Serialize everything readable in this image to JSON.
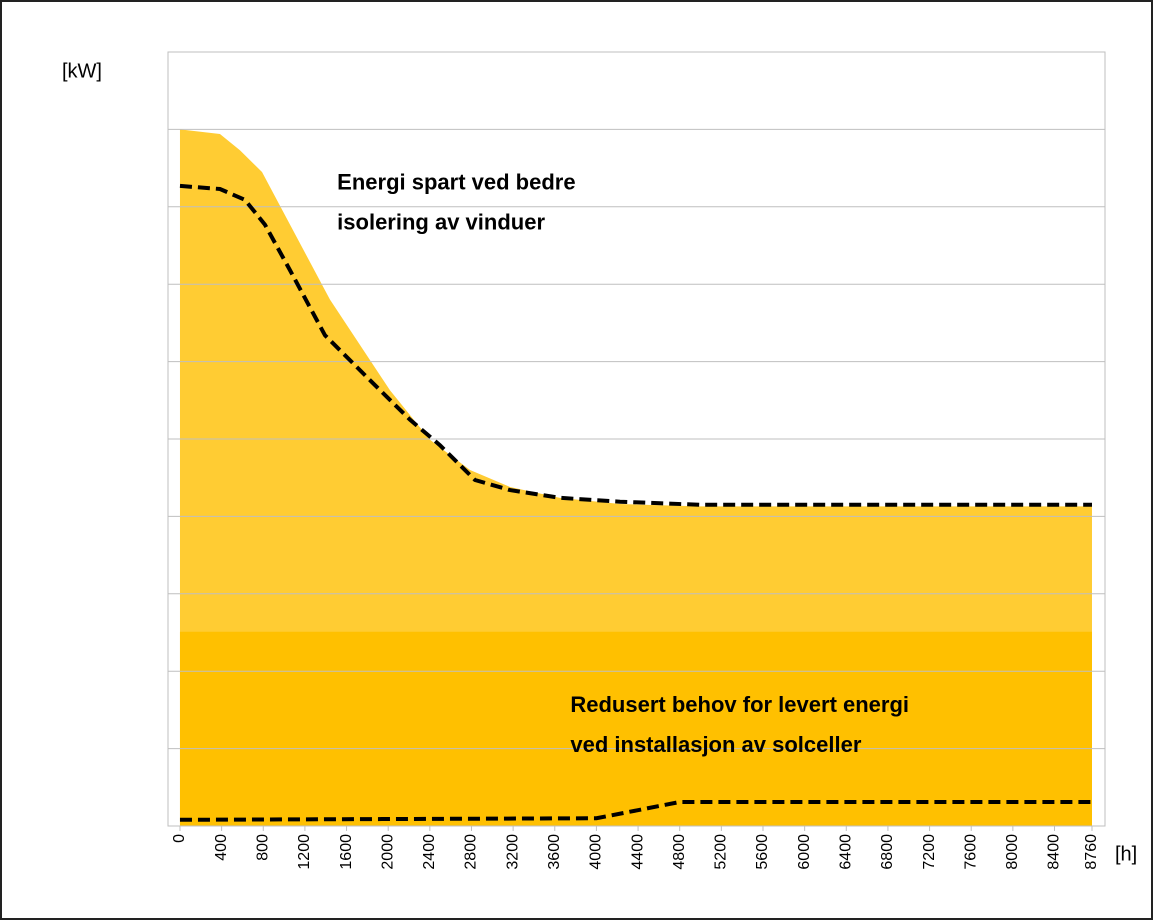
{
  "chart_data": {
    "type": "area",
    "ylabel": "[kW]",
    "xlabel": "[h]",
    "xlim": [
      -115,
      8885
    ],
    "ylim": [
      0,
      10
    ],
    "yticks": [
      0,
      1,
      2,
      3,
      4,
      5,
      6,
      7,
      8,
      9,
      10
    ],
    "xticks": [
      0,
      400,
      800,
      1200,
      1600,
      2000,
      2400,
      2800,
      3200,
      3600,
      4000,
      4400,
      4800,
      5200,
      5600,
      6000,
      6400,
      6800,
      7200,
      7600,
      8000,
      8400,
      8760
    ],
    "grid": true,
    "series": [
      {
        "style": "area",
        "color": "#ffcc33",
        "x": [
          0,
          384,
          576,
          788,
          1057,
          1441,
          2017,
          2401,
          2786,
          3170,
          3650,
          4227,
          4995,
          8760
        ],
        "values": [
          9.0,
          8.94,
          8.73,
          8.45,
          7.77,
          6.8,
          5.63,
          4.99,
          4.6,
          4.38,
          4.24,
          4.16,
          4.13,
          4.13
        ]
      },
      {
        "style": "area",
        "color": "#ffc000",
        "x": [
          0,
          8760
        ],
        "values": [
          2.51,
          2.51
        ]
      },
      {
        "style": "dashed",
        "color": "#000000",
        "x": [
          0,
          384,
          624,
          816,
          1057,
          1393,
          1825,
          2209,
          2497,
          2834,
          3170,
          3650,
          4227,
          4995,
          8760
        ],
        "values": [
          8.27,
          8.23,
          8.09,
          7.77,
          7.18,
          6.34,
          5.76,
          5.25,
          4.92,
          4.47,
          4.34,
          4.24,
          4.19,
          4.15,
          4.15
        ]
      },
      {
        "style": "dashed",
        "color": "#000000",
        "x": [
          0,
          4000,
          4800,
          8760
        ],
        "values": [
          0.08,
          0.1,
          0.31,
          0.31
        ]
      }
    ],
    "annotations": [
      {
        "lines": [
          "Energi spart ved bedre",
          "isolering av vinduer"
        ],
        "x": 1510,
        "y": 8.3
      },
      {
        "lines": [
          "Redusert behov for levert energi",
          "ved installasjon av solceller"
        ],
        "x": 3750,
        "y": 1.55
      }
    ]
  }
}
